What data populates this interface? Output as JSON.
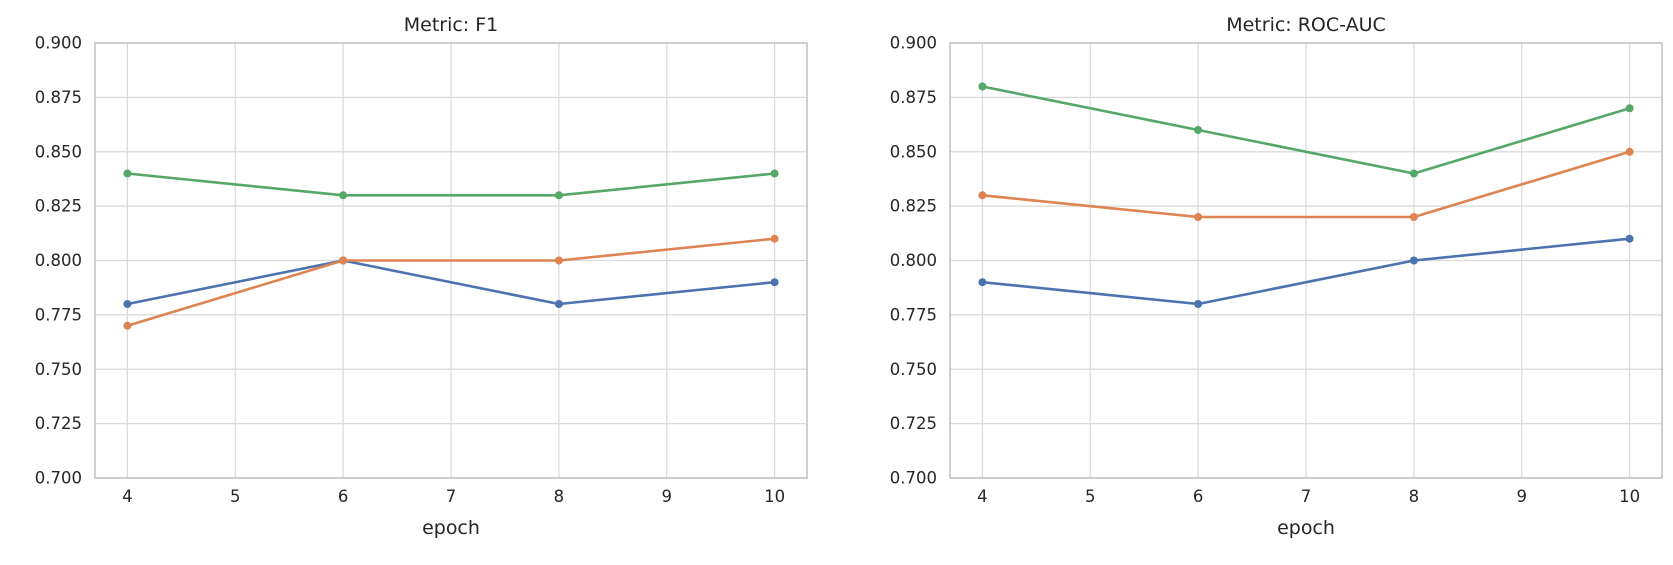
{
  "figure": {
    "background": "#ffffff",
    "text_color": "#262626",
    "grid_color": "#d9d9d9",
    "spine_color": "#c3c3c3"
  },
  "chart_data": [
    {
      "type": "line",
      "title": "Metric: F1",
      "xlabel": "epoch",
      "ylabel": "",
      "x": [
        4,
        6,
        8,
        10
      ],
      "series": [
        {
          "color": "#4C72B0",
          "values": [
            0.78,
            0.8,
            0.78,
            0.79
          ]
        },
        {
          "color": "#DD8452",
          "values": [
            0.77,
            0.8,
            0.8,
            0.81
          ]
        },
        {
          "color": "#55A868",
          "values": [
            0.84,
            0.83,
            0.83,
            0.84
          ]
        }
      ],
      "xticks": [
        4,
        5,
        6,
        7,
        8,
        9,
        10
      ],
      "yticks": [
        0.7,
        0.725,
        0.75,
        0.775,
        0.8,
        0.825,
        0.85,
        0.875,
        0.9
      ],
      "ylim": [
        0.7,
        0.9
      ],
      "grid": true,
      "legend": "none",
      "markers": true
    },
    {
      "type": "line",
      "title": "Metric: ROC-AUC",
      "xlabel": "epoch",
      "ylabel": "",
      "x": [
        4,
        6,
        8,
        10
      ],
      "series": [
        {
          "color": "#4C72B0",
          "values": [
            0.79,
            0.78,
            0.8,
            0.81
          ]
        },
        {
          "color": "#DD8452",
          "values": [
            0.83,
            0.82,
            0.82,
            0.85
          ]
        },
        {
          "color": "#55A868",
          "values": [
            0.88,
            0.86,
            0.84,
            0.87
          ]
        }
      ],
      "xticks": [
        4,
        5,
        6,
        7,
        8,
        9,
        10
      ],
      "yticks": [
        0.7,
        0.725,
        0.75,
        0.775,
        0.8,
        0.825,
        0.85,
        0.875,
        0.9
      ],
      "ylim": [
        0.7,
        0.9
      ],
      "grid": true,
      "legend": "none",
      "markers": true
    }
  ]
}
